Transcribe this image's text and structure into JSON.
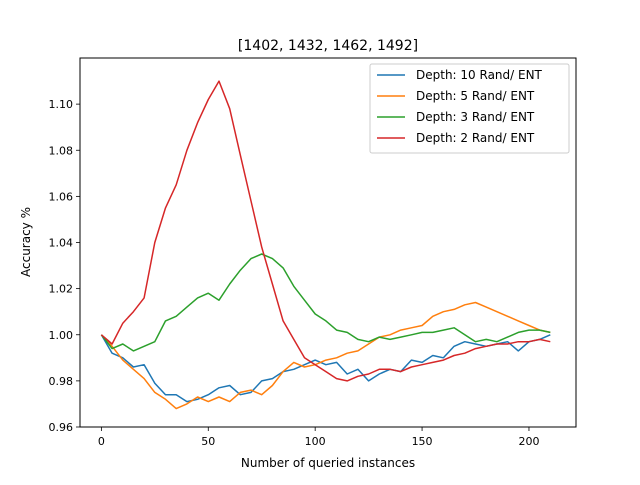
{
  "chart_data": {
    "type": "line",
    "title": "[1402, 1432, 1462, 1492]",
    "xlabel": "Number of queried instances",
    "ylabel": "Accuracy %",
    "xlim": [
      -10,
      222
    ],
    "ylim": [
      0.96,
      1.12
    ],
    "xticks": [
      0,
      50,
      100,
      150,
      200
    ],
    "yticks": [
      0.96,
      0.98,
      1.0,
      1.02,
      1.04,
      1.06,
      1.08,
      1.1
    ],
    "ytick_labels": [
      "0.96",
      "0.98",
      "1.00",
      "1.02",
      "1.04",
      "1.06",
      "1.08",
      "1.10"
    ],
    "legend_position": "top-right",
    "grid": false,
    "series": [
      {
        "name": "Depth: 10 Rand/ ENT",
        "color": "#1f77b4",
        "x": [
          0,
          5,
          10,
          15,
          20,
          25,
          30,
          35,
          40,
          45,
          50,
          55,
          60,
          65,
          70,
          75,
          80,
          85,
          90,
          95,
          100,
          105,
          110,
          115,
          120,
          125,
          130,
          135,
          140,
          145,
          150,
          155,
          160,
          165,
          170,
          175,
          180,
          185,
          190,
          195,
          200,
          205,
          210
        ],
        "y": [
          1.0,
          0.992,
          0.99,
          0.986,
          0.987,
          0.979,
          0.974,
          0.974,
          0.971,
          0.972,
          0.974,
          0.977,
          0.978,
          0.974,
          0.975,
          0.98,
          0.981,
          0.984,
          0.985,
          0.987,
          0.989,
          0.987,
          0.988,
          0.983,
          0.985,
          0.98,
          0.983,
          0.985,
          0.984,
          0.989,
          0.988,
          0.991,
          0.99,
          0.995,
          0.997,
          0.996,
          0.995,
          0.996,
          0.997,
          0.993,
          0.997,
          0.998,
          1.0
        ]
      },
      {
        "name": "Depth: 5 Rand/ ENT",
        "color": "#ff7f0e",
        "x": [
          0,
          5,
          10,
          15,
          20,
          25,
          30,
          35,
          40,
          45,
          50,
          55,
          60,
          65,
          70,
          75,
          80,
          85,
          90,
          95,
          100,
          105,
          110,
          115,
          120,
          125,
          130,
          135,
          140,
          145,
          150,
          155,
          160,
          165,
          170,
          175,
          180,
          185,
          190,
          195,
          200,
          205,
          210
        ],
        "y": [
          1.0,
          0.995,
          0.989,
          0.985,
          0.981,
          0.975,
          0.972,
          0.968,
          0.97,
          0.973,
          0.971,
          0.973,
          0.971,
          0.975,
          0.976,
          0.974,
          0.978,
          0.984,
          0.988,
          0.986,
          0.987,
          0.989,
          0.99,
          0.992,
          0.993,
          0.996,
          0.999,
          1.0,
          1.002,
          1.003,
          1.004,
          1.008,
          1.01,
          1.011,
          1.013,
          1.014,
          1.012,
          1.01,
          1.008,
          1.006,
          1.004,
          1.002,
          1.001
        ]
      },
      {
        "name": "Depth: 3 Rand/ ENT",
        "color": "#2ca02c",
        "x": [
          0,
          5,
          10,
          15,
          20,
          25,
          30,
          35,
          40,
          45,
          50,
          55,
          60,
          65,
          70,
          75,
          80,
          85,
          90,
          95,
          100,
          105,
          110,
          115,
          120,
          125,
          130,
          135,
          140,
          145,
          150,
          155,
          160,
          165,
          170,
          175,
          180,
          185,
          190,
          195,
          200,
          205,
          210
        ],
        "y": [
          1.0,
          0.994,
          0.996,
          0.993,
          0.995,
          0.997,
          1.006,
          1.008,
          1.012,
          1.016,
          1.018,
          1.015,
          1.022,
          1.028,
          1.033,
          1.035,
          1.033,
          1.029,
          1.021,
          1.015,
          1.009,
          1.006,
          1.002,
          1.001,
          0.998,
          0.997,
          0.999,
          0.998,
          0.999,
          1.0,
          1.001,
          1.001,
          1.002,
          1.003,
          1.0,
          0.997,
          0.998,
          0.997,
          0.999,
          1.001,
          1.002,
          1.002,
          1.001
        ]
      },
      {
        "name": "Depth: 2 Rand/ ENT",
        "color": "#d62728",
        "x": [
          0,
          5,
          10,
          15,
          20,
          25,
          30,
          35,
          40,
          45,
          50,
          55,
          60,
          65,
          70,
          75,
          80,
          85,
          90,
          95,
          100,
          105,
          110,
          115,
          120,
          125,
          130,
          135,
          140,
          145,
          150,
          155,
          160,
          165,
          170,
          175,
          180,
          185,
          190,
          195,
          200,
          205,
          210
        ],
        "y": [
          1.0,
          0.996,
          1.005,
          1.01,
          1.016,
          1.04,
          1.055,
          1.065,
          1.08,
          1.092,
          1.102,
          1.11,
          1.098,
          1.078,
          1.058,
          1.038,
          1.022,
          1.006,
          0.998,
          0.99,
          0.987,
          0.984,
          0.981,
          0.98,
          0.982,
          0.983,
          0.985,
          0.985,
          0.984,
          0.986,
          0.987,
          0.988,
          0.989,
          0.991,
          0.992,
          0.994,
          0.995,
          0.996,
          0.996,
          0.997,
          0.997,
          0.998,
          0.997
        ]
      }
    ]
  }
}
